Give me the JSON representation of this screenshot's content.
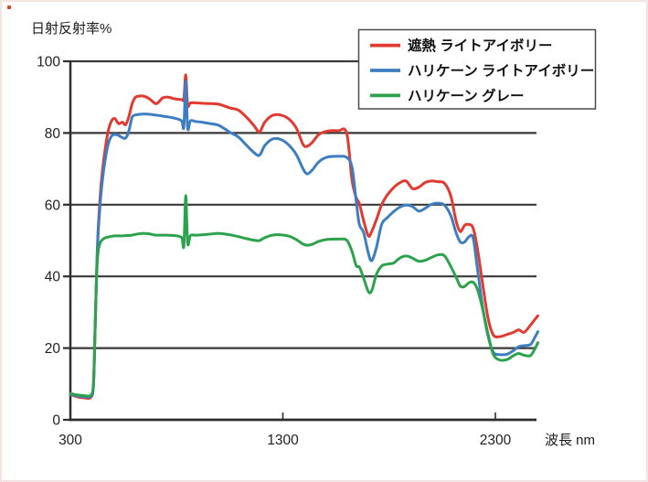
{
  "chart_data": {
    "type": "line",
    "title": "",
    "ylabel": "日射反射率%",
    "xlabel": "波長 nm",
    "xlim": [
      300,
      2500
    ],
    "ylim": [
      0,
      100
    ],
    "x_ticks": [
      300,
      1300,
      2300
    ],
    "y_ticks": [
      0,
      20,
      40,
      60,
      80,
      100
    ],
    "grid": "horizontal",
    "legend_position": "top-right",
    "axis_color": "#2e2e2e",
    "grid_color": "#3a3a3a",
    "x": [
      300,
      340,
      370,
      395,
      408,
      415,
      422,
      430,
      440,
      450,
      465,
      480,
      495,
      510,
      527,
      545,
      560,
      575,
      590,
      605,
      625,
      650,
      675,
      700,
      715,
      735,
      760,
      785,
      810,
      825,
      834,
      843,
      852,
      865,
      890,
      920,
      960,
      1000,
      1050,
      1090,
      1130,
      1165,
      1190,
      1215,
      1250,
      1290,
      1330,
      1365,
      1395,
      1415,
      1440,
      1470,
      1510,
      1560,
      1600,
      1625,
      1645,
      1660,
      1680,
      1702,
      1718,
      1740,
      1765,
      1790,
      1820,
      1850,
      1880,
      1910,
      1940,
      1970,
      2000,
      2030,
      2060,
      2090,
      2115,
      2135,
      2155,
      2175,
      2195,
      2215,
      2240,
      2265,
      2290,
      2320,
      2355,
      2385,
      2410,
      2435,
      2465,
      2485,
      2500
    ],
    "series": [
      {
        "name": "遮熱 ライトアイボリー",
        "color": "#e13a31",
        "values": [
          7.0,
          6.3,
          6.1,
          6.2,
          9.0,
          22,
          38,
          52,
          62,
          69,
          76,
          81,
          83.5,
          84,
          82.6,
          83,
          82.3,
          84.5,
          88,
          89.9,
          90.3,
          90.2,
          89.4,
          88.2,
          88.6,
          89.8,
          90,
          89.6,
          89.4,
          89.3,
          89.6,
          96.2,
          87.8,
          88.4,
          88.4,
          88.3,
          88.2,
          88,
          87,
          86.4,
          84.3,
          82,
          80.3,
          83,
          84.9,
          85,
          83.8,
          81.2,
          76.8,
          76.3,
          77.5,
          79.6,
          80.5,
          80.6,
          80,
          67,
          62,
          60.3,
          55.5,
          51.3,
          52.5,
          55.8,
          60,
          62.6,
          64.7,
          66.1,
          66.6,
          64.5,
          64.9,
          66.2,
          66.6,
          66.4,
          66,
          62.5,
          55.5,
          52.5,
          54.2,
          54.5,
          53.5,
          48,
          38,
          28.5,
          23.7,
          23.2,
          23.8,
          24.4,
          25.1,
          24.4,
          26.4,
          27.9,
          29
        ]
      },
      {
        "name": "ハリケーン ライトアイボリー",
        "color": "#3d7ec1",
        "values": [
          7.1,
          6.6,
          6.4,
          6.5,
          9.0,
          22,
          38,
          51,
          60,
          66.5,
          73,
          77.3,
          79.2,
          79.6,
          79.3,
          78.7,
          78.6,
          80.5,
          84.3,
          85,
          85.2,
          85.3,
          85.2,
          85,
          84.9,
          84.7,
          84.5,
          84.2,
          83.8,
          83.3,
          81.8,
          94.4,
          81.4,
          83.4,
          83.2,
          83,
          82.6,
          82.1,
          80.2,
          78.9,
          76.5,
          74.5,
          73.8,
          76.5,
          78.3,
          78.2,
          76.5,
          73.8,
          70,
          68.6,
          69.8,
          72,
          73.3,
          73.5,
          73.2,
          70.5,
          61,
          54.5,
          52.2,
          46.5,
          44.4,
          48,
          54.5,
          56.3,
          58,
          59.3,
          59.9,
          59.5,
          58.2,
          59,
          60.1,
          60.4,
          59.9,
          57,
          52.2,
          49.6,
          49.6,
          51,
          50.8,
          42.5,
          31.5,
          23.5,
          18.9,
          18.2,
          18.3,
          19.3,
          20.4,
          20.7,
          21,
          22.9,
          24.6
        ]
      },
      {
        "name": "ハリケーン グレー",
        "color": "#2ca24c",
        "values": [
          7.3,
          6.9,
          6.7,
          6.8,
          9.5,
          22,
          38,
          46.5,
          49.3,
          50.2,
          50.8,
          51,
          51.2,
          51.3,
          51.3,
          51.3,
          51.4,
          51.4,
          51.5,
          51.7,
          51.9,
          52,
          51.8,
          51.5,
          51.5,
          51.5,
          51.5,
          51.4,
          51.2,
          50.7,
          48.6,
          62.5,
          49.3,
          51.4,
          51.5,
          51.6,
          51.8,
          52,
          51.6,
          51.1,
          50.5,
          50.1,
          50,
          50.8,
          51.5,
          51.6,
          51.2,
          50.2,
          49,
          48.7,
          49,
          49.8,
          50.3,
          50.4,
          50.1,
          47,
          43,
          42.6,
          39.5,
          35.8,
          36,
          40.5,
          42.9,
          43.4,
          43.7,
          45.1,
          45.7,
          45.1,
          44.2,
          44.5,
          45.3,
          46,
          45.8,
          42.8,
          39.8,
          37.3,
          37.2,
          38.2,
          38.4,
          36.5,
          31,
          24,
          18.3,
          16.7,
          16.8,
          17.9,
          18.5,
          18,
          17.9,
          19.7,
          21.5
        ]
      }
    ]
  }
}
